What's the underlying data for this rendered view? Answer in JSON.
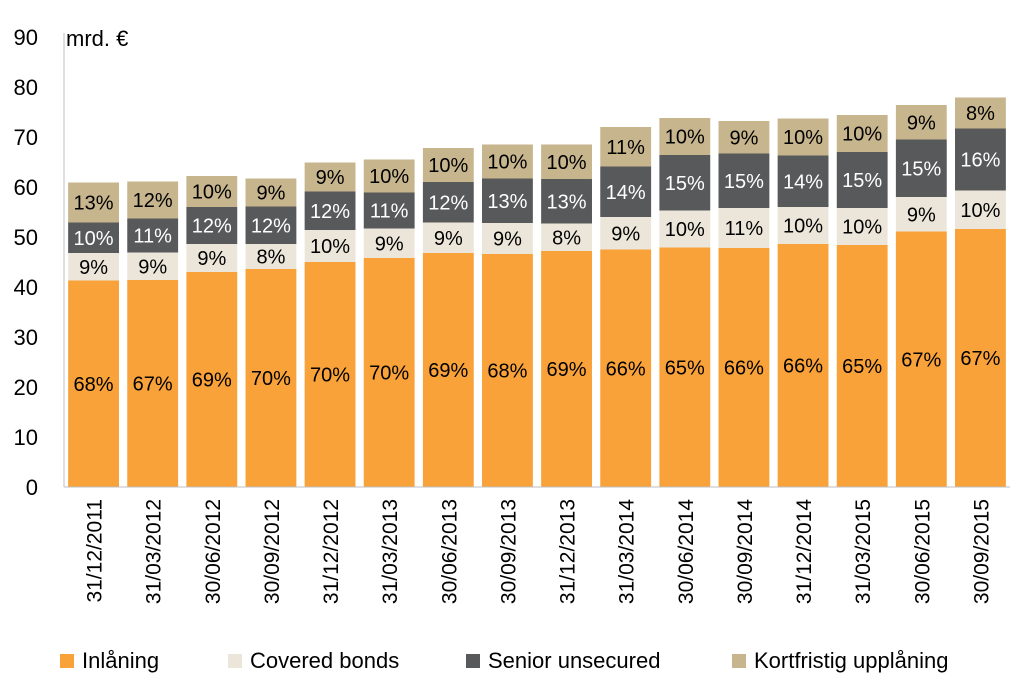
{
  "chart_data": {
    "type": "bar",
    "stacked": true,
    "unit_label": "mrd. €",
    "ylim": [
      0,
      90
    ],
    "yticks": [
      0,
      10,
      20,
      30,
      40,
      50,
      60,
      70,
      80,
      90
    ],
    "grid": false,
    "legend_position": "bottom",
    "categories": [
      "31/12/2011",
      "31/03/2012",
      "30/06/2012",
      "30/09/2012",
      "31/12/2012",
      "31/03/2013",
      "30/06/2013",
      "30/09/2013",
      "31/12/2013",
      "31/03/2014",
      "30/06/2014",
      "30/09/2014",
      "31/12/2014",
      "31/03/2015",
      "30/06/2015",
      "30/09/2015"
    ],
    "series": [
      {
        "name": "Inlåning",
        "color": "#F9A23A",
        "label_color": "#000000",
        "values": [
          41.3,
          41.4,
          43.0,
          43.6,
          45.0,
          45.8,
          46.8,
          46.6,
          47.2,
          47.5,
          47.9,
          47.8,
          48.6,
          48.4,
          51.1,
          51.6
        ],
        "labels": [
          "68%",
          "67%",
          "69%",
          "70%",
          "70%",
          "70%",
          "69%",
          "68%",
          "69%",
          "66%",
          "65%",
          "66%",
          "66%",
          "65%",
          "67%",
          "67%"
        ]
      },
      {
        "name": "Covered bonds",
        "color": "#ECE6DA",
        "label_color": "#000000",
        "values": [
          5.5,
          5.5,
          5.6,
          5.0,
          6.4,
          5.9,
          6.1,
          6.2,
          5.5,
          6.5,
          7.4,
          8.0,
          7.4,
          7.4,
          6.9,
          7.7
        ],
        "labels": [
          "9%",
          "9%",
          "9%",
          "8%",
          "10%",
          "9%",
          "9%",
          "9%",
          "8%",
          "9%",
          "10%",
          "11%",
          "10%",
          "10%",
          "9%",
          "10%"
        ]
      },
      {
        "name": "Senior unsecured",
        "color": "#58595B",
        "label_color": "#ffffff",
        "values": [
          6.1,
          6.8,
          7.4,
          7.5,
          7.7,
          7.2,
          8.1,
          8.9,
          8.9,
          10.1,
          11.1,
          10.9,
          10.3,
          11.2,
          11.5,
          12.4
        ],
        "labels": [
          "10%",
          "11%",
          "12%",
          "12%",
          "12%",
          "11%",
          "12%",
          "13%",
          "13%",
          "14%",
          "15%",
          "15%",
          "14%",
          "15%",
          "15%",
          "16%"
        ]
      },
      {
        "name": "Kortfristig upplåning",
        "color": "#C6B58D",
        "label_color": "#000000",
        "values": [
          8.0,
          7.4,
          6.2,
          5.6,
          5.8,
          6.6,
          6.8,
          6.8,
          6.9,
          7.9,
          7.4,
          6.5,
          7.4,
          7.4,
          6.9,
          6.2
        ],
        "labels": [
          "13%",
          "12%",
          "10%",
          "9%",
          "9%",
          "10%",
          "10%",
          "10%",
          "10%",
          "11%",
          "10%",
          "9%",
          "10%",
          "10%",
          "9%",
          "8%"
        ]
      }
    ]
  }
}
